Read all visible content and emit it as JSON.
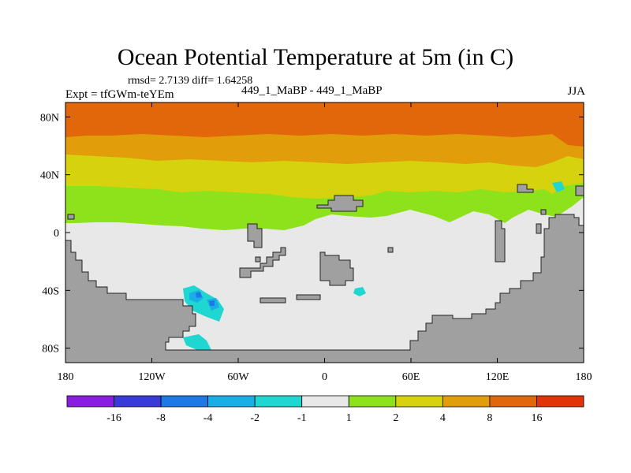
{
  "header": {
    "title": "Ocean Potential Temperature at 5m (in C)",
    "stats": "rmsd= 2.7139  diff= 1.64258",
    "experiment": "Expt = tfGWm-teYEm",
    "center_label": "449_1_MaBP - 449_1_MaBP",
    "season": "JJA"
  },
  "axes": {
    "x_ticks": [
      "180",
      "120W",
      "60W",
      "0",
      "60E",
      "120E",
      "180"
    ],
    "y_ticks": [
      "80N",
      "40N",
      "0",
      "40S",
      "80S"
    ],
    "x_range": [
      -180,
      180
    ],
    "y_range": [
      -90,
      90
    ]
  },
  "colorbar": {
    "labels": [
      "-16",
      "-8",
      "-4",
      "-2",
      "-1",
      "1",
      "2",
      "4",
      "8",
      "16"
    ],
    "colors": [
      "#8a1ee0",
      "#3a3ad8",
      "#1e78e6",
      "#18aee6",
      "#20d6d0",
      "#e8e8e8",
      "#8ee21c",
      "#d6d20e",
      "#e29e0a",
      "#e2660a",
      "#e2320a"
    ]
  },
  "chart_data": {
    "type": "heatmap",
    "title": "Ocean Potential Temperature at 5m (in C)",
    "variable": "ocean potential temperature difference at 5m",
    "units": "C",
    "levels": [
      -16,
      -8,
      -4,
      -2,
      -1,
      1,
      2,
      4,
      8,
      16
    ],
    "legend": "bottom colorbar",
    "zones": [
      {
        "lat_range": [
          63,
          90
        ],
        "bin": "8 to 16"
      },
      {
        "lat_range": [
          48,
          63
        ],
        "bin": "4 to 8"
      },
      {
        "lat_range": [
          33,
          48
        ],
        "bin": "2 to 4"
      },
      {
        "lat_range": [
          8,
          33
        ],
        "bin": "1 to 2"
      },
      {
        "lat_range": [
          -90,
          8
        ],
        "bin": "-1 to 1"
      }
    ],
    "notes": "Land masked in gray; localized -4 to -1 anomalies near 80W-70W 40S-60S"
  }
}
